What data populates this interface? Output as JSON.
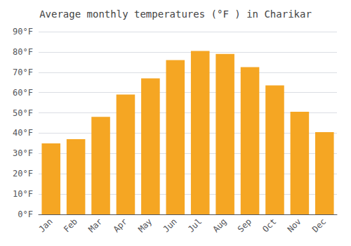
{
  "chart_data": {
    "type": "bar",
    "title": "Average monthly temperatures (°F ) in Charikar",
    "categories": [
      "Jan",
      "Feb",
      "Mar",
      "Apr",
      "May",
      "Jun",
      "Jul",
      "Aug",
      "Sep",
      "Oct",
      "Nov",
      "Dec"
    ],
    "values": [
      35,
      37,
      48,
      59,
      67,
      76,
      80.5,
      79,
      72.5,
      63.5,
      50.5,
      40.5
    ],
    "color": "#F5A623",
    "ylim": [
      0,
      90
    ],
    "yticks": [
      {
        "value": 0,
        "label": "0°F"
      },
      {
        "value": 10,
        "label": "10°F"
      },
      {
        "value": 20,
        "label": "20°F"
      },
      {
        "value": 30,
        "label": "30°F"
      },
      {
        "value": 40,
        "label": "40°F"
      },
      {
        "value": 50,
        "label": "50°F"
      },
      {
        "value": 60,
        "label": "60°F"
      },
      {
        "value": 70,
        "label": "70°F"
      },
      {
        "value": 80,
        "label": "80°F"
      },
      {
        "value": 90,
        "label": "90°F"
      }
    ],
    "grid": true
  }
}
